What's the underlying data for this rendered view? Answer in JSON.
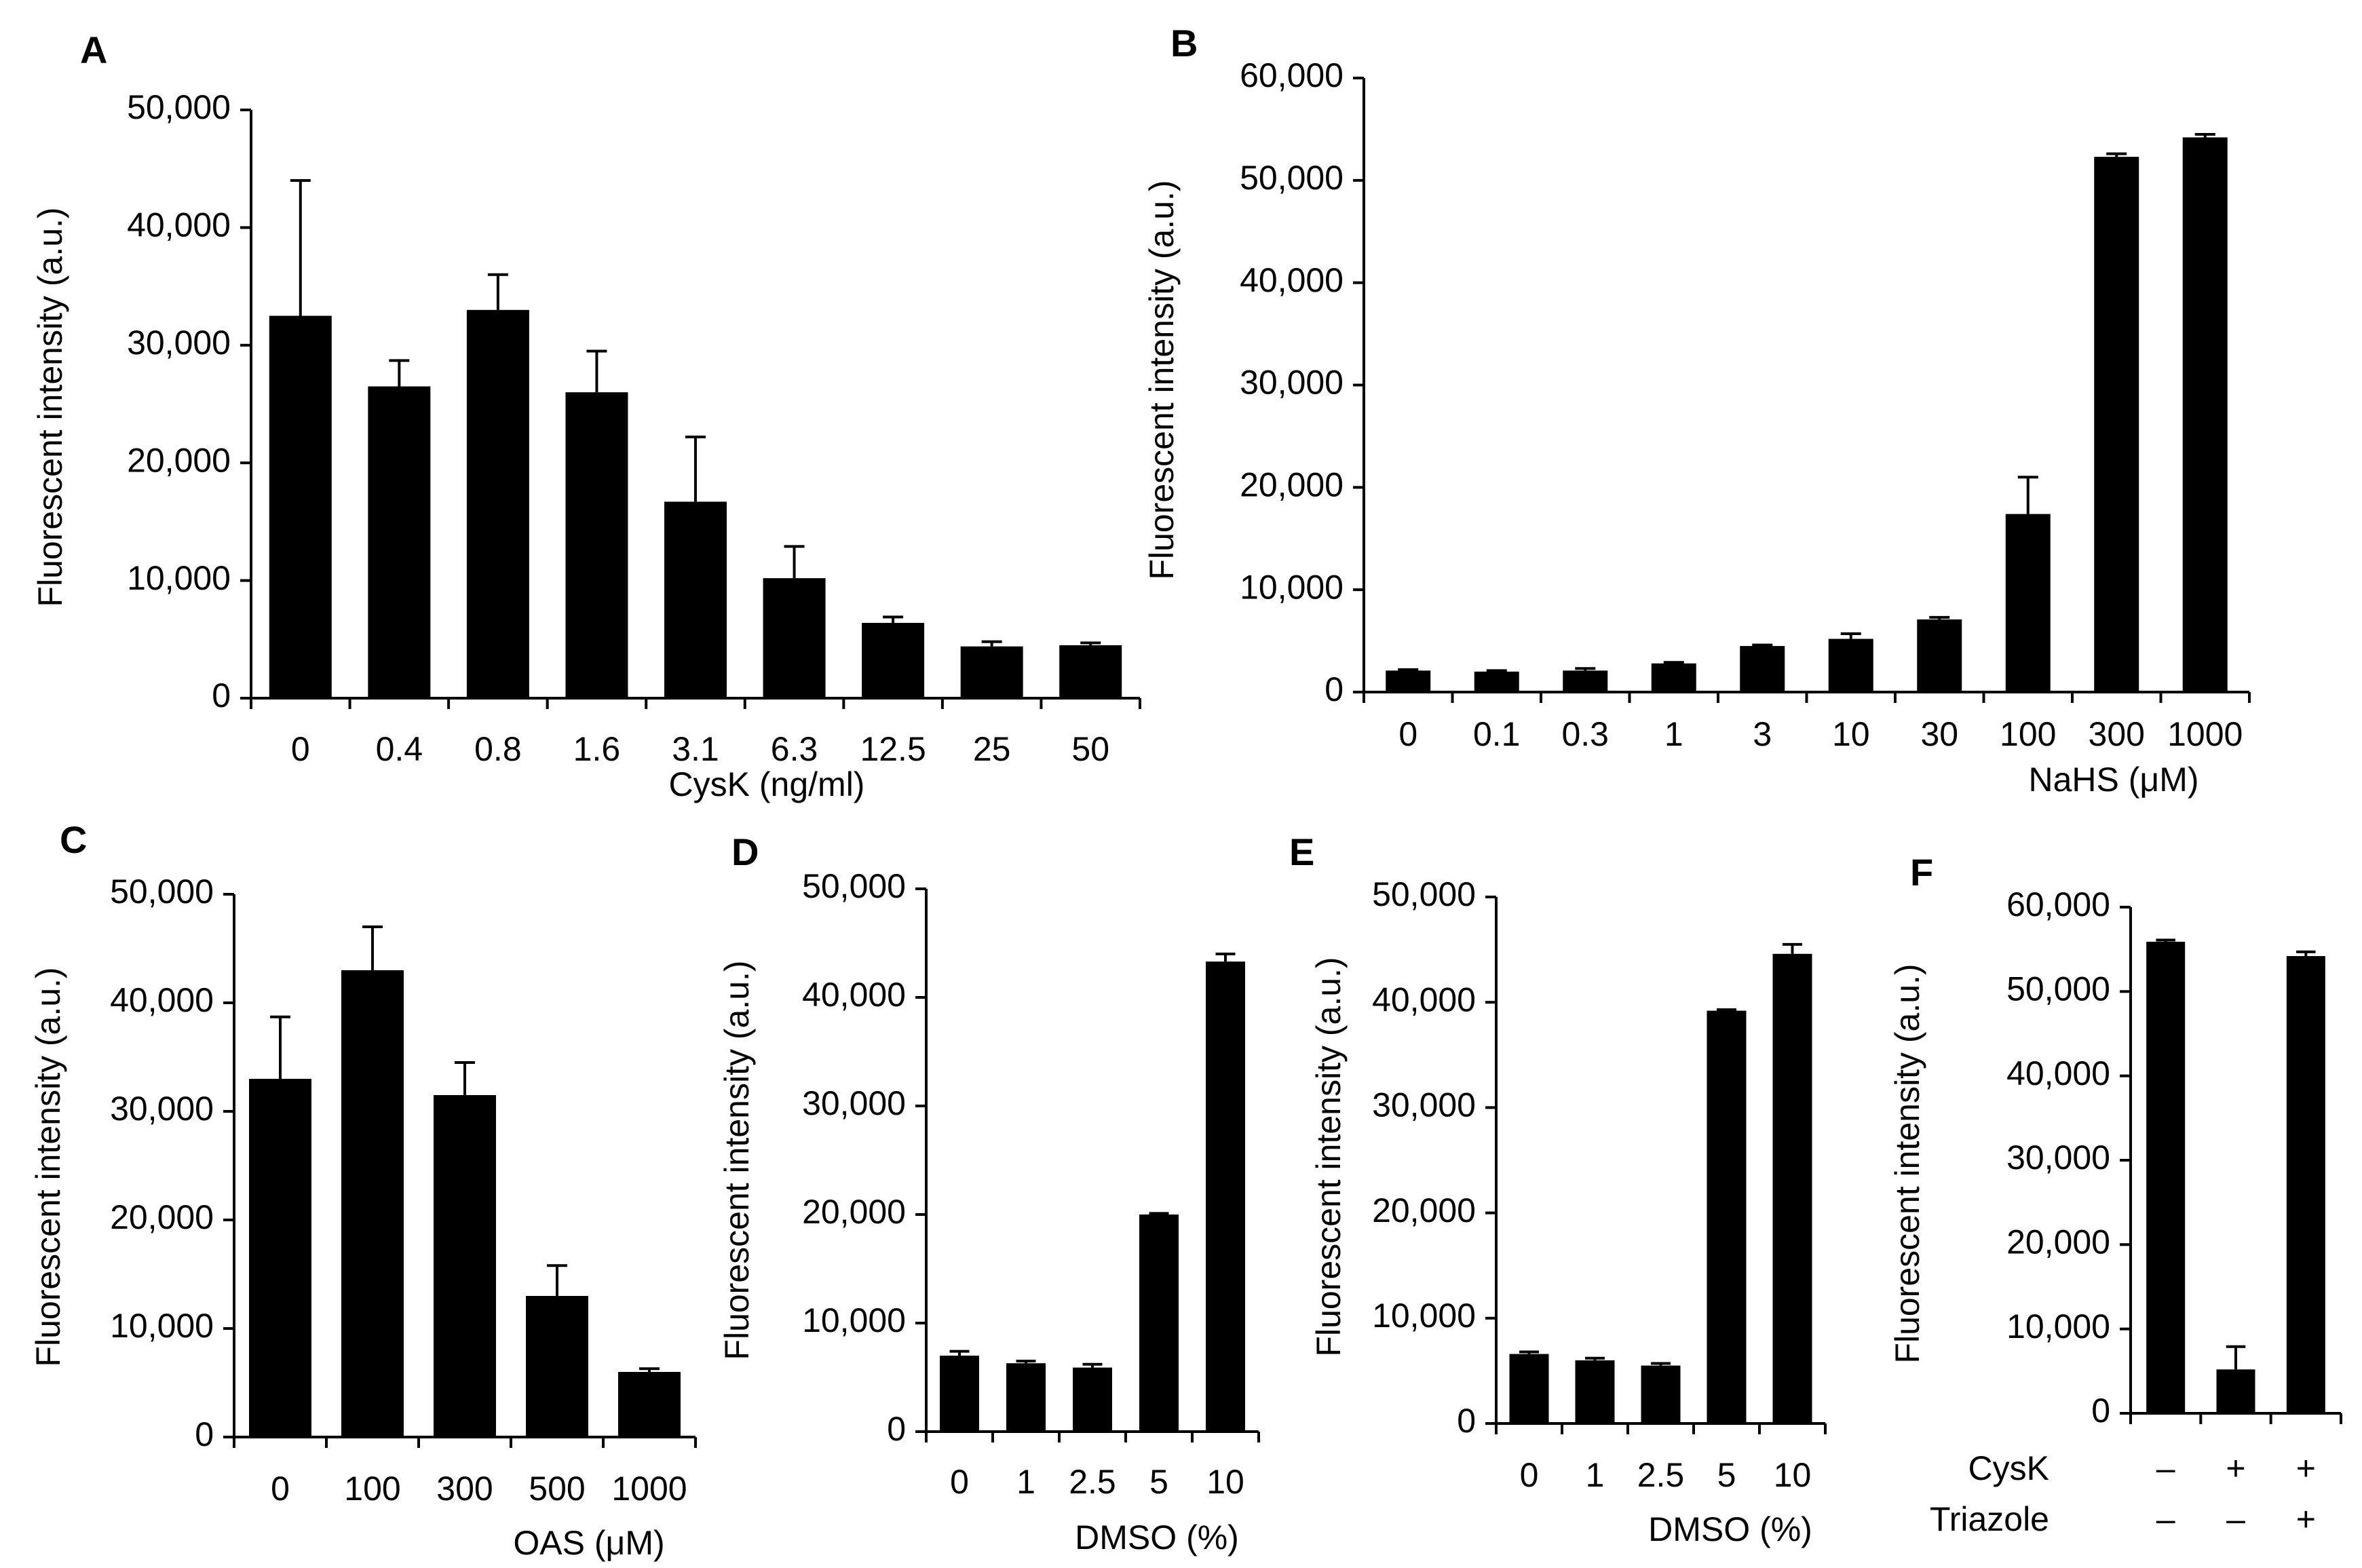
{
  "figure": {
    "colors": {
      "bar": "#000000",
      "axis": "#000000",
      "background": "#ffffff"
    }
  },
  "chart_data": [
    {
      "id": "A",
      "type": "bar",
      "panel_label": "A",
      "ylabel": "Fluorescent intensity (a.u.)",
      "xlabel": "CysK (ng/ml)",
      "ylim": [
        0,
        50000
      ],
      "yticks": [
        0,
        10000,
        20000,
        30000,
        40000,
        50000
      ],
      "ytick_labels": [
        "0",
        "10,000",
        "20,000",
        "30,000",
        "40,000",
        "50,000"
      ],
      "categories": [
        "0",
        "0.4",
        "0.8",
        "1.6",
        "3.1",
        "6.3",
        "12.5",
        "25",
        "50"
      ],
      "values": [
        32500,
        26500,
        33000,
        26000,
        16700,
        10200,
        6400,
        4400,
        4500
      ],
      "errors": [
        11500,
        2200,
        3000,
        3500,
        5500,
        2700,
        500,
        400,
        200
      ]
    },
    {
      "id": "B",
      "type": "bar",
      "panel_label": "B",
      "ylabel": "Fluorescent intensity (a.u.)",
      "xlabel": "NaHS (μM)",
      "ylim": [
        0,
        60000
      ],
      "yticks": [
        0,
        10000,
        20000,
        30000,
        40000,
        50000,
        60000
      ],
      "ytick_labels": [
        "0",
        "10,000",
        "20,000",
        "30,000",
        "40,000",
        "50,000",
        "60,000"
      ],
      "categories": [
        "0",
        "0.1",
        "0.3",
        "1",
        "3",
        "10",
        "30",
        "100",
        "300",
        "1000"
      ],
      "values": [
        2100,
        2000,
        2100,
        2800,
        4500,
        5200,
        7100,
        17400,
        52300,
        54200
      ],
      "errors": [
        100,
        100,
        200,
        100,
        100,
        500,
        200,
        3600,
        300,
        300
      ]
    },
    {
      "id": "C",
      "type": "bar",
      "panel_label": "C",
      "ylabel": "Fluorescent intensity (a.u.)",
      "xlabel": "OAS (μM)",
      "ylim": [
        0,
        50000
      ],
      "yticks": [
        0,
        10000,
        20000,
        30000,
        40000,
        50000
      ],
      "ytick_labels": [
        "0",
        "10,000",
        "20,000",
        "30,000",
        "40,000",
        "50,000"
      ],
      "categories": [
        "0",
        "100",
        "300",
        "500",
        "1000"
      ],
      "values": [
        33000,
        43000,
        31500,
        13000,
        6000
      ],
      "errors": [
        5700,
        4000,
        3000,
        2800,
        300
      ]
    },
    {
      "id": "D",
      "type": "bar",
      "panel_label": "D",
      "ylabel": "Fluorescent intensity (a.u.)",
      "xlabel": "DMSO (%)",
      "ylim": [
        0,
        50000
      ],
      "yticks": [
        0,
        10000,
        20000,
        30000,
        40000,
        50000
      ],
      "ytick_labels": [
        "0",
        "10,000",
        "20,000",
        "30,000",
        "40,000",
        "50,000"
      ],
      "categories": [
        "0",
        "1",
        "2.5",
        "5",
        "10"
      ],
      "values": [
        7000,
        6300,
        5900,
        20000,
        43300
      ],
      "errors": [
        400,
        200,
        300,
        100,
        700
      ]
    },
    {
      "id": "E",
      "type": "bar",
      "panel_label": "E",
      "ylabel": "Fluorescent intensity (a.u.)",
      "xlabel": "DMSO (%)",
      "ylim": [
        0,
        50000
      ],
      "yticks": [
        0,
        10000,
        20000,
        30000,
        40000,
        50000
      ],
      "ytick_labels": [
        "0",
        "10,000",
        "20,000",
        "30,000",
        "40,000",
        "50,000"
      ],
      "categories": [
        "0",
        "1",
        "2.5",
        "5",
        "10"
      ],
      "values": [
        6600,
        6000,
        5500,
        39200,
        44600
      ],
      "errors": [
        200,
        200,
        200,
        100,
        900
      ]
    },
    {
      "id": "F",
      "type": "bar",
      "panel_label": "F",
      "ylabel": "Fluorescent intensity (a.u.)",
      "xlabel": "",
      "ylim": [
        0,
        60000
      ],
      "yticks": [
        0,
        10000,
        20000,
        30000,
        40000,
        50000,
        60000
      ],
      "ytick_labels": [
        "0",
        "10,000",
        "20,000",
        "30,000",
        "40,000",
        "50,000",
        "60,000"
      ],
      "categories": [
        "–/–",
        "+/–",
        "+/+"
      ],
      "values": [
        55900,
        5200,
        54200
      ],
      "errors": [
        200,
        2700,
        500
      ],
      "condition_rows": [
        {
          "label": "CysK",
          "marks": [
            "–",
            "+",
            "+"
          ]
        },
        {
          "label": "Triazole",
          "marks": [
            "–",
            "–",
            "+"
          ]
        }
      ]
    }
  ]
}
